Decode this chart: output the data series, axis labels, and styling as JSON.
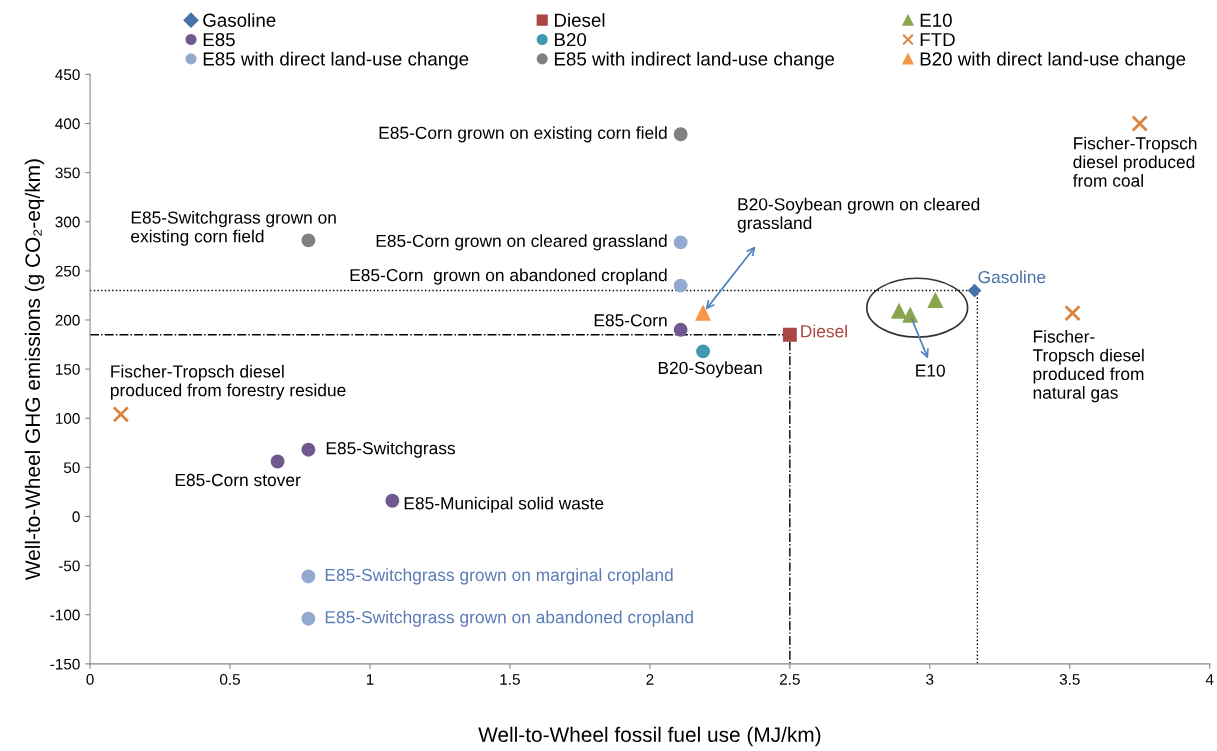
{
  "chart_data": {
    "type": "scatter",
    "xlabel": "Well-to-Wheel fossil fuel use (MJ/km)",
    "ylabel": "Well-to-Wheel GHG emissions (g CO₂-eq/km)",
    "xlim": [
      0,
      4
    ],
    "xticks": [
      0,
      0.5,
      1,
      1.5,
      2,
      2.5,
      3,
      3.5,
      4
    ],
    "ylim": [
      -150,
      450
    ],
    "yticks": [
      -150,
      -100,
      -50,
      0,
      50,
      100,
      150,
      200,
      250,
      300,
      350,
      400,
      450
    ],
    "grid": false,
    "legend": "top",
    "series": [
      {
        "type": "line",
        "color": "#000000",
        "line_style": "dotted",
        "x": [
          0,
          3.17,
          3.17
        ],
        "values": [
          230,
          230,
          -150
        ]
      },
      {
        "type": "line",
        "color": "#000000",
        "line_style": "dashed",
        "x": [
          0,
          2.5,
          2.5
        ],
        "values": [
          185,
          185,
          -150
        ]
      },
      {
        "name": "Gasoline",
        "color": "#4572a7",
        "marker": "diamond",
        "x": [
          3.16
        ],
        "values": [
          230
        ]
      },
      {
        "name": "Diesel",
        "color": "#aa4643",
        "marker": "square",
        "x": [
          2.5
        ],
        "values": [
          185
        ]
      },
      {
        "name": "E10",
        "color": "#89a54e",
        "marker": "triangle",
        "x": [
          2.89,
          2.93,
          3.02
        ],
        "values": [
          209,
          205,
          220
        ]
      },
      {
        "name": "E85",
        "color": "#71588f",
        "marker": "circle",
        "x": [
          2.11,
          0.67,
          0.78,
          1.08
        ],
        "values": [
          190,
          56,
          68,
          16
        ]
      },
      {
        "name": "B20",
        "color": "#4198af",
        "marker": "circle",
        "x": [
          2.19
        ],
        "values": [
          168
        ]
      },
      {
        "name": "FTD",
        "color": "#db843d",
        "marker": "cross",
        "x": [
          0.11,
          3.75,
          3.51
        ],
        "values": [
          104,
          400,
          207
        ]
      },
      {
        "name": "E85 with direct land-use change",
        "color": "#93a9cf",
        "marker": "circle",
        "x": [
          2.11,
          2.11,
          0.78,
          0.78
        ],
        "values": [
          279,
          235,
          -61,
          -104
        ]
      },
      {
        "name": "E85 with indirect land-use change",
        "color": "#808080",
        "marker": "circle",
        "x": [
          2.11,
          0.78
        ],
        "values": [
          389,
          281
        ]
      },
      {
        "name": "B20 with direct land-use change",
        "color": "#f79646",
        "marker": "triangle",
        "x": [
          2.19
        ],
        "values": [
          207
        ]
      }
    ],
    "annotations": [
      {
        "text": "E85-Corn grown on existing corn field",
        "x": 2.11,
        "y": 389
      },
      {
        "text": "E85-Switchgrass grown on\nexisting corn field",
        "x": 0.78,
        "y": 281
      },
      {
        "text": "E85-Corn grown on cleared grassland",
        "x": 2.11,
        "y": 279
      },
      {
        "text": "E85-Corn  grown on abandoned cropland",
        "x": 2.11,
        "y": 235
      },
      {
        "text": "B20-Soybean grown on cleared\ngrassland",
        "x": 2.19,
        "y": 207
      },
      {
        "text": "E85-Corn",
        "x": 2.11,
        "y": 190
      },
      {
        "text": "B20-Soybean",
        "x": 2.19,
        "y": 168
      },
      {
        "text": "Diesel",
        "x": 2.5,
        "y": 185
      },
      {
        "text": "Gasoline",
        "x": 3.16,
        "y": 230
      },
      {
        "text": "E10",
        "x": 2.93,
        "y": 205
      },
      {
        "text": "Fischer-Tropsch\ndiesel produced\nfrom coal",
        "x": 3.75,
        "y": 400
      },
      {
        "text": "Fischer-\nTropsch diesel\nproduced from\nnatural gas",
        "x": 3.51,
        "y": 207
      },
      {
        "text": "Fischer-Tropsch diesel\nproduced from forestry residue",
        "x": 0.11,
        "y": 104
      },
      {
        "text": "E85-Switchgrass",
        "x": 0.78,
        "y": 68
      },
      {
        "text": "E85-Corn stover",
        "x": 0.67,
        "y": 56
      },
      {
        "text": "E85-Municipal solid waste",
        "x": 1.08,
        "y": 16
      },
      {
        "text": "E85-Switchgrass grown on marginal cropland",
        "x": 0.78,
        "y": -61
      },
      {
        "text": "E85-Switchgrass grown on abandoned cropland",
        "x": 0.78,
        "y": -104
      }
    ]
  }
}
